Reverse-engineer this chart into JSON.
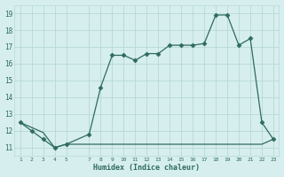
{
  "xlabel": "Humidex (Indice chaleur)",
  "x_upper": [
    1,
    2,
    3,
    4,
    5,
    7,
    8,
    9,
    10,
    11,
    12,
    13,
    14,
    15,
    16,
    17,
    18,
    19,
    20,
    21,
    22,
    23
  ],
  "y_upper": [
    12.5,
    12.0,
    11.5,
    11.0,
    11.2,
    11.8,
    14.6,
    16.5,
    16.5,
    16.2,
    16.6,
    16.6,
    17.1,
    17.1,
    17.1,
    17.2,
    18.9,
    18.9,
    17.1,
    17.5,
    12.5,
    11.5
  ],
  "x_lower": [
    1,
    3,
    4,
    5,
    6,
    7,
    8,
    9,
    10,
    11,
    12,
    13,
    14,
    15,
    16,
    17,
    18,
    19,
    20,
    21,
    22,
    23
  ],
  "y_lower": [
    12.5,
    11.9,
    11.0,
    11.2,
    11.2,
    11.2,
    11.2,
    11.2,
    11.2,
    11.2,
    11.2,
    11.2,
    11.2,
    11.2,
    11.2,
    11.2,
    11.2,
    11.2,
    11.2,
    11.2,
    11.2,
    11.5
  ],
  "xlim": [
    0.5,
    23.5
  ],
  "ylim": [
    10.5,
    19.5
  ],
  "yticks": [
    11,
    12,
    13,
    14,
    15,
    16,
    17,
    18,
    19
  ],
  "xticks": [
    1,
    2,
    3,
    4,
    5,
    7,
    8,
    9,
    10,
    11,
    12,
    13,
    14,
    15,
    16,
    17,
    18,
    19,
    20,
    21,
    22,
    23
  ],
  "line_color": "#2e6b5e",
  "bg_color": "#d6eeee",
  "grid_color": "#b8d8d8",
  "marker_size": 2.5
}
